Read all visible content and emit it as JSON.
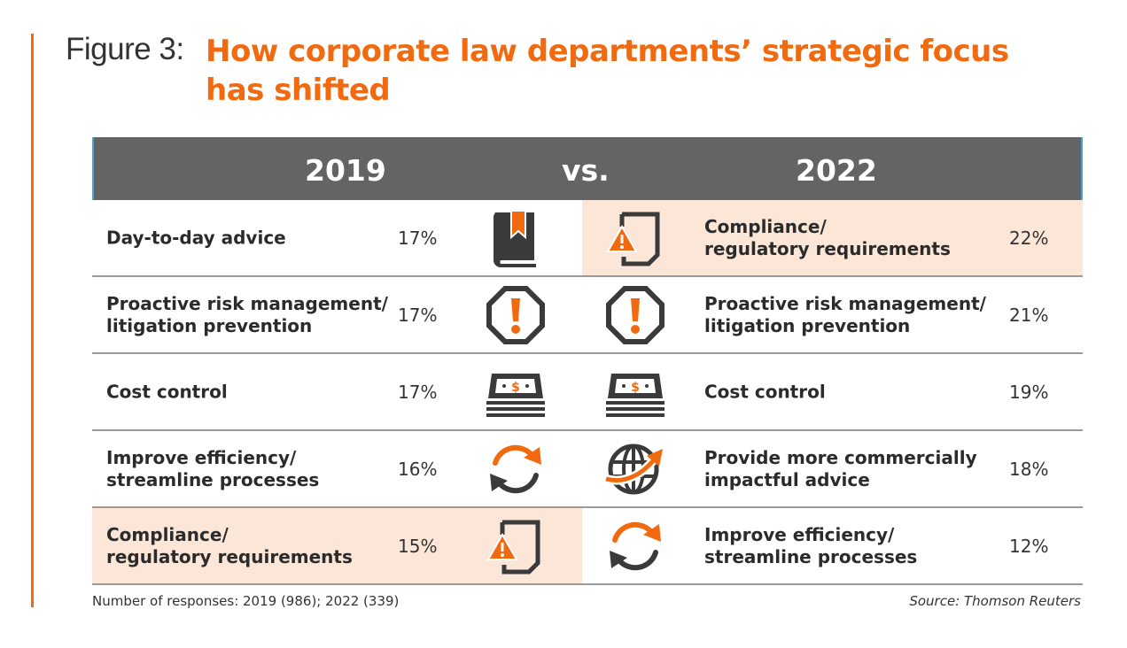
{
  "figure": {
    "label": "Figure 3:",
    "title": "How corporate law departments’ strategic focus has shifted"
  },
  "header": {
    "left_year": "2019",
    "vs": "vs.",
    "right_year": "2022"
  },
  "colors": {
    "accent": "#f26a10",
    "header_bg": "#646464",
    "highlight": "#fbe6d8",
    "icon_dark": "#3a3a3a"
  },
  "rows": [
    {
      "left": {
        "label": "Day-to-day advice",
        "pct": "17%",
        "icon": "book-bookmark-icon"
      },
      "right": {
        "label": "Compliance/\nregulatory requirements",
        "pct": "22%",
        "icon": "document-warning-icon"
      }
    },
    {
      "left": {
        "label": "Proactive risk management/\nlitigation prevention",
        "pct": "17%",
        "icon": "octagon-alert-icon"
      },
      "right": {
        "label": "Proactive risk management/\nlitigation prevention",
        "pct": "21%",
        "icon": "octagon-alert-icon"
      }
    },
    {
      "left": {
        "label": "Cost control",
        "pct": "17%",
        "icon": "money-stack-icon"
      },
      "right": {
        "label": "Cost control",
        "pct": "19%",
        "icon": "money-stack-icon"
      }
    },
    {
      "left": {
        "label": "Improve efficiency/\nstreamline processes",
        "pct": "16%",
        "icon": "refresh-arrows-icon"
      },
      "right": {
        "label": "Provide more commercially\nimpactful advice",
        "pct": "18%",
        "icon": "globe-arrow-icon"
      }
    },
    {
      "left": {
        "label": "Compliance/\nregulatory requirements",
        "pct": "15%",
        "icon": "document-warning-icon"
      },
      "right": {
        "label": "Improve efficiency/\nstreamline processes",
        "pct": "12%",
        "icon": "refresh-arrows-icon"
      }
    }
  ],
  "footer": {
    "responses": "Number of responses: 2019 (986);  2022 (339)",
    "source": "Source: Thomson Reuters"
  }
}
